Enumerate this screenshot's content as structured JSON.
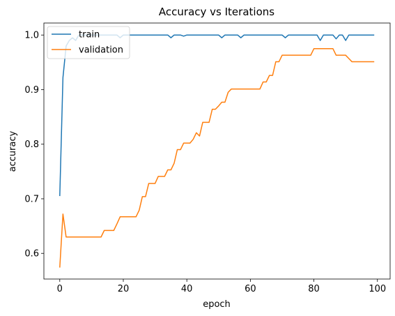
{
  "chart_data": {
    "type": "line",
    "title": "Accuracy vs Iterations",
    "xlabel": "epoch",
    "ylabel": "accuracy",
    "xlim": [
      -5,
      104
    ],
    "ylim": [
      0.553,
      1.022
    ],
    "xticks": [
      0,
      20,
      40,
      60,
      80,
      100
    ],
    "yticks": [
      0.6,
      0.7,
      0.8,
      0.9,
      1.0
    ],
    "xtick_labels": [
      "0",
      "20",
      "40",
      "60",
      "80",
      "100"
    ],
    "ytick_labels": [
      "0.6",
      "0.7",
      "0.8",
      "0.9",
      "1.0"
    ],
    "legend_position": "top-left",
    "series": [
      {
        "name": "train",
        "color": "#1f77b4",
        "x": [
          0,
          1,
          2,
          3,
          4,
          5,
          6,
          7,
          8,
          9,
          10,
          11,
          12,
          13,
          14,
          15,
          16,
          17,
          18,
          19,
          20,
          21,
          22,
          23,
          24,
          25,
          26,
          27,
          28,
          29,
          30,
          31,
          32,
          33,
          34,
          35,
          36,
          37,
          38,
          39,
          40,
          41,
          42,
          43,
          44,
          45,
          46,
          47,
          48,
          49,
          50,
          51,
          52,
          53,
          54,
          55,
          56,
          57,
          58,
          59,
          60,
          61,
          62,
          63,
          64,
          65,
          66,
          67,
          68,
          69,
          70,
          71,
          72,
          73,
          74,
          75,
          76,
          77,
          78,
          79,
          80,
          81,
          82,
          83,
          84,
          85,
          86,
          87,
          88,
          89,
          90,
          91,
          92,
          93,
          94,
          95,
          96,
          97,
          98,
          99
        ],
        "y": [
          0.705,
          0.922,
          0.98,
          0.99,
          0.995,
          0.99,
          1.0,
          1.0,
          1.0,
          1.0,
          1.0,
          1.0,
          1.0,
          1.0,
          1.0,
          1.0,
          1.0,
          1.0,
          1.0,
          0.995,
          1.0,
          1.0,
          1.0,
          1.0,
          1.0,
          1.0,
          1.0,
          1.0,
          1.0,
          1.0,
          1.0,
          1.0,
          1.0,
          1.0,
          1.0,
          0.995,
          1.0,
          1.0,
          1.0,
          0.998,
          1.0,
          1.0,
          1.0,
          1.0,
          1.0,
          1.0,
          1.0,
          1.0,
          1.0,
          1.0,
          1.0,
          0.995,
          1.0,
          1.0,
          1.0,
          1.0,
          1.0,
          0.995,
          1.0,
          1.0,
          1.0,
          1.0,
          1.0,
          1.0,
          1.0,
          1.0,
          1.0,
          1.0,
          1.0,
          1.0,
          1.0,
          0.995,
          1.0,
          1.0,
          1.0,
          1.0,
          1.0,
          1.0,
          1.0,
          1.0,
          1.0,
          1.0,
          0.99,
          1.0,
          1.0,
          1.0,
          1.0,
          0.993,
          1.0,
          1.0,
          0.99,
          1.0,
          1.0,
          1.0,
          1.0,
          1.0,
          1.0,
          1.0,
          1.0,
          1.0
        ]
      },
      {
        "name": "validation",
        "color": "#ff7f0e",
        "x": [
          0,
          1,
          2,
          3,
          4,
          5,
          6,
          7,
          8,
          9,
          10,
          11,
          12,
          13,
          14,
          15,
          16,
          17,
          18,
          19,
          20,
          21,
          22,
          23,
          24,
          25,
          26,
          27,
          28,
          29,
          30,
          31,
          32,
          33,
          34,
          35,
          36,
          37,
          38,
          39,
          40,
          41,
          42,
          43,
          44,
          45,
          46,
          47,
          48,
          49,
          50,
          51,
          52,
          53,
          54,
          55,
          56,
          57,
          58,
          59,
          60,
          61,
          62,
          63,
          64,
          65,
          66,
          67,
          68,
          69,
          70,
          71,
          72,
          73,
          74,
          75,
          76,
          77,
          78,
          79,
          80,
          81,
          82,
          83,
          84,
          85,
          86,
          87,
          88,
          89,
          90,
          91,
          92,
          93,
          94,
          95,
          96,
          97,
          98,
          99
        ],
        "y": [
          0.574,
          0.672,
          0.63,
          0.63,
          0.63,
          0.63,
          0.63,
          0.63,
          0.63,
          0.63,
          0.63,
          0.63,
          0.63,
          0.63,
          0.642,
          0.642,
          0.642,
          0.642,
          0.654,
          0.667,
          0.667,
          0.667,
          0.667,
          0.667,
          0.667,
          0.679,
          0.704,
          0.704,
          0.728,
          0.728,
          0.728,
          0.741,
          0.741,
          0.741,
          0.753,
          0.753,
          0.765,
          0.79,
          0.79,
          0.802,
          0.802,
          0.802,
          0.809,
          0.821,
          0.815,
          0.84,
          0.84,
          0.84,
          0.864,
          0.864,
          0.87,
          0.877,
          0.877,
          0.895,
          0.901,
          0.901,
          0.901,
          0.901,
          0.901,
          0.901,
          0.901,
          0.901,
          0.901,
          0.901,
          0.914,
          0.914,
          0.926,
          0.926,
          0.951,
          0.951,
          0.963,
          0.963,
          0.963,
          0.963,
          0.963,
          0.963,
          0.963,
          0.963,
          0.963,
          0.963,
          0.975,
          0.975,
          0.975,
          0.975,
          0.975,
          0.975,
          0.975,
          0.963,
          0.963,
          0.963,
          0.963,
          0.957,
          0.951,
          0.951,
          0.951,
          0.951,
          0.951,
          0.951,
          0.951,
          0.951
        ]
      }
    ]
  }
}
